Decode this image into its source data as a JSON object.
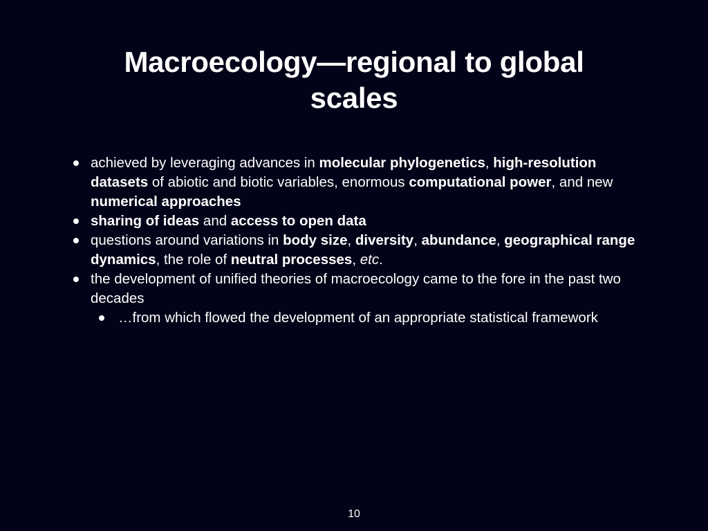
{
  "slide": {
    "title_line1": "Macroecology—regional to global",
    "title_line2": "scales",
    "bullets": [
      {
        "segments": [
          {
            "text": "achieved by leveraging advances in "
          },
          {
            "text": "molecular phylogenetics"
          },
          {
            "text": ", "
          },
          {
            "text": "high-resolution datasets"
          },
          {
            "text": " of abiotic and biotic variables, enormous "
          },
          {
            "text": "computational power"
          },
          {
            "text": ", and new "
          },
          {
            "text": "numerical approaches"
          }
        ]
      },
      {
        "segments": [
          {
            "text": "sharing of ideas"
          },
          {
            "text": " and "
          },
          {
            "text": "access to open data"
          }
        ]
      },
      {
        "segments": [
          {
            "text": "questions around variations in "
          },
          {
            "text": "body size"
          },
          {
            "text": ", "
          },
          {
            "text": "diversity"
          },
          {
            "text": ", "
          },
          {
            "text": "abundance"
          },
          {
            "text": ", "
          },
          {
            "text": "geographical range dynamics"
          },
          {
            "text": ", the role of "
          },
          {
            "text": "neutral processes"
          },
          {
            "text": ", "
          },
          {
            "text": "etc"
          },
          {
            "text": "."
          }
        ]
      },
      {
        "segments": [
          {
            "text": "the development of unified theories of macroecology came to the fore in the past two decades"
          }
        ],
        "sub": [
          {
            "text": "…from which flowed the development of an appropriate statistical framework"
          }
        ]
      }
    ],
    "page_number": "10"
  }
}
